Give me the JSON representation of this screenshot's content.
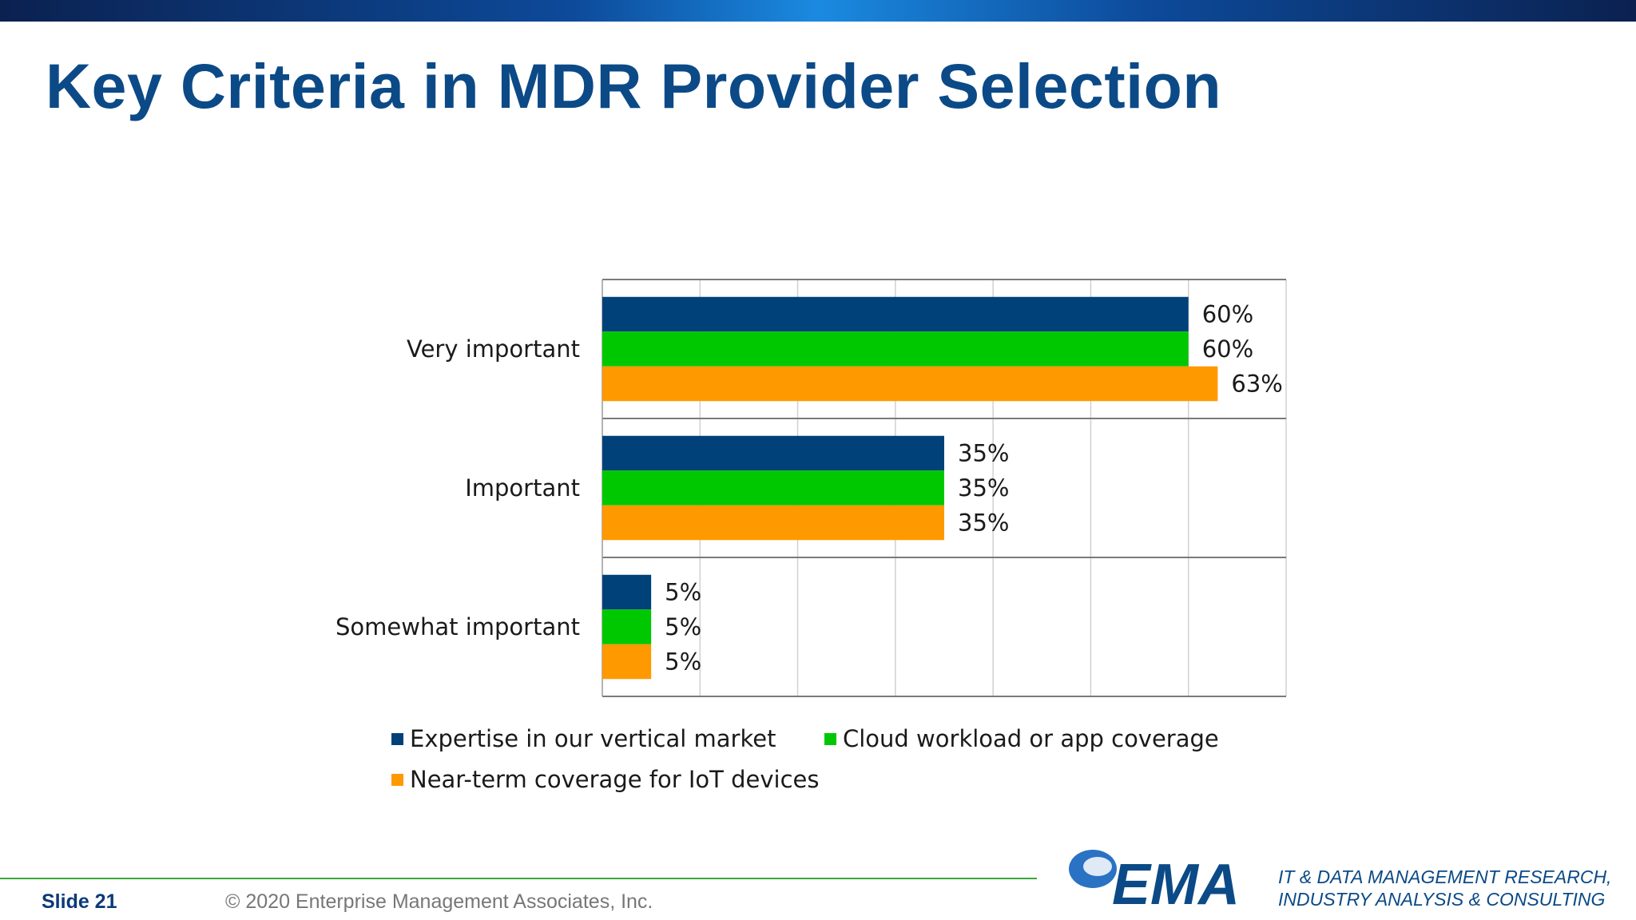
{
  "slide": {
    "title": "Key Criteria in MDR Provider Selection",
    "slide_label": "Slide  21",
    "copyright": "© 2020  Enterprise Management Associates, Inc.",
    "logo_text": "EMA",
    "tagline_line1": "IT & DATA MANAGEMENT RESEARCH,",
    "tagline_line2": "INDUSTRY ANALYSIS & CONSULTING"
  },
  "colors": {
    "title": "#0b4a87",
    "series_1": "#00417a",
    "series_2": "#00c800",
    "series_3": "#ff9900",
    "footer_line": "#3aa835"
  },
  "chart_data": {
    "type": "bar",
    "orientation": "horizontal",
    "title": "",
    "xlabel": "",
    "ylabel": "",
    "xlim": [
      0,
      70
    ],
    "grid": true,
    "legend": "bottom",
    "categories": [
      "Very important",
      "Important",
      "Somewhat important"
    ],
    "series": [
      {
        "name": "Expertise in our vertical market",
        "values": [
          60,
          35,
          5
        ],
        "labels": [
          "60%",
          "35%",
          "5%"
        ]
      },
      {
        "name": "Cloud workload or app coverage",
        "values": [
          60,
          35,
          5
        ],
        "labels": [
          "60%",
          "35%",
          "5%"
        ]
      },
      {
        "name": "Near-term coverage for IoT devices",
        "values": [
          63,
          35,
          5
        ],
        "labels": [
          "63%",
          "35%",
          "5%"
        ]
      }
    ]
  }
}
